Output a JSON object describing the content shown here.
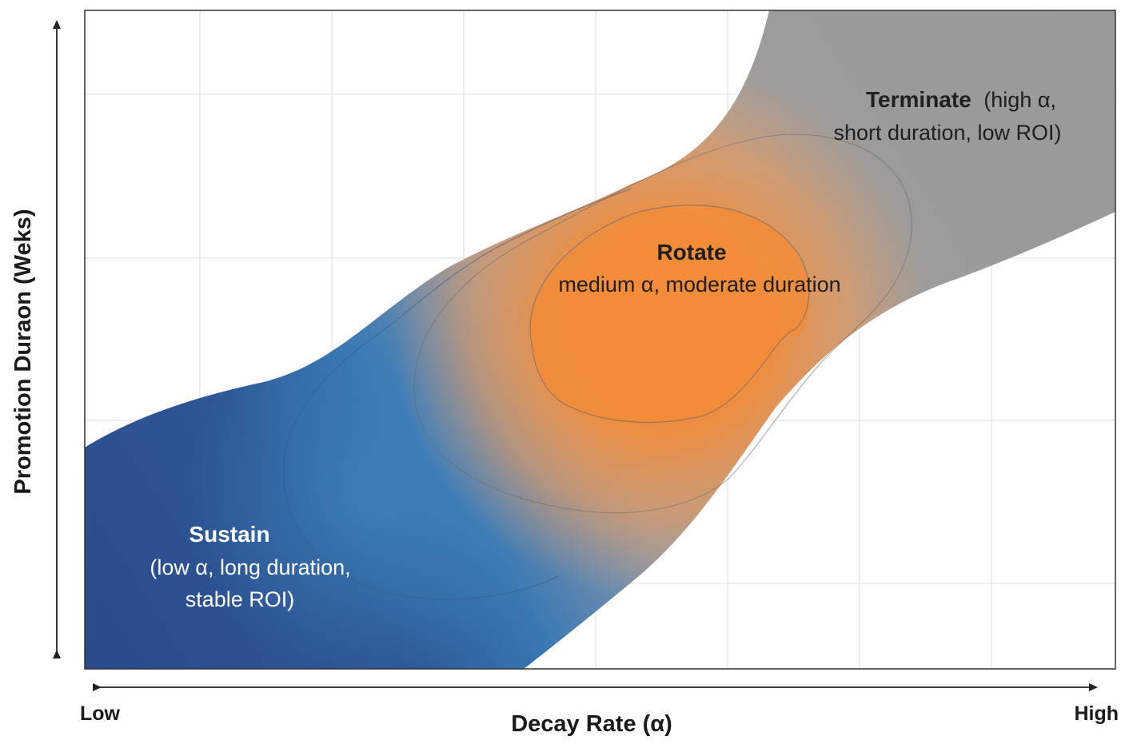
{
  "diagram": {
    "x_axis": {
      "title": "Decay Rate (α)",
      "low_label": "Low",
      "high_label": "High"
    },
    "y_axis": {
      "title": "Promotion Duraon (Weks)"
    },
    "regions": [
      {
        "id": "terminate",
        "title": "Terminate",
        "lines": [
          "(high α,",
          "short duration, low ROI)"
        ],
        "color": "#9a9a9a"
      },
      {
        "id": "rotate",
        "title": "Rotate",
        "lines": [
          "medium α, moderate duration"
        ],
        "color": "#f28c38"
      },
      {
        "id": "sustain",
        "title": "Sustain",
        "lines": [
          "(low α, long duration,",
          "stable ROI)"
        ],
        "color": "#2a4b8d"
      }
    ],
    "colors": {
      "sustain_dark": "#2a4a8c",
      "sustain_mid": "#3a77b4",
      "rotate_core": "#f28c38",
      "terminate_gray": "#999999",
      "frame": "#333333",
      "grid": "#e4e4e4"
    }
  }
}
